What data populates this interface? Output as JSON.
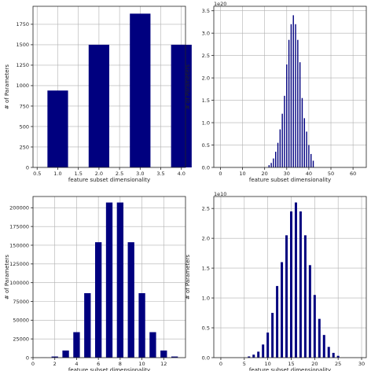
{
  "chart_data": [
    {
      "type": "bar",
      "xlabel": "feature subset dimensionality",
      "ylabel": "# of Parameters",
      "xlim": [
        0.4,
        4.1
      ],
      "ylim": [
        0,
        1970
      ],
      "xticks": [
        0.5,
        1.0,
        1.5,
        2.0,
        2.5,
        3.0,
        3.5,
        4.0
      ],
      "xtick_labels": [
        "0.5",
        "1.0",
        "1.5",
        "2.0",
        "2.5",
        "3.0",
        "3.5",
        "4.0"
      ],
      "yticks": [
        0,
        250,
        500,
        750,
        1000,
        1250,
        1500,
        1750
      ],
      "ytick_labels": [
        "0",
        "250",
        "500",
        "750",
        "1000",
        "1250",
        "1500",
        "1750"
      ],
      "offset_text": "",
      "grid": true,
      "bar_width": 0.5,
      "x": [
        1,
        2,
        3,
        4
      ],
      "values": [
        940,
        1500,
        1880,
        1500
      ],
      "color": "#00007f"
    },
    {
      "type": "bar",
      "xlabel": "feature subset dimensionality",
      "ylabel": "# of Parameters",
      "xlim": [
        -3,
        66
      ],
      "ylim": [
        0,
        3.6
      ],
      "xticks": [
        0,
        10,
        20,
        30,
        40,
        50,
        60
      ],
      "xtick_labels": [
        "0",
        "10",
        "20",
        "30",
        "40",
        "50",
        "60"
      ],
      "yticks": [
        0,
        0.5,
        1.0,
        1.5,
        2.0,
        2.5,
        3.0,
        3.5
      ],
      "ytick_labels": [
        "0.0",
        "0.5",
        "1.0",
        "1.5",
        "2.0",
        "2.5",
        "3.0",
        "3.5"
      ],
      "offset_text": "1e20",
      "grid": true,
      "bar_width": 0.5,
      "x": [
        22,
        23,
        24,
        25,
        26,
        27,
        28,
        29,
        30,
        31,
        32,
        33,
        34,
        35,
        36,
        37,
        38,
        39,
        40,
        41,
        42
      ],
      "values": [
        0.05,
        0.1,
        0.2,
        0.35,
        0.55,
        0.85,
        1.2,
        1.6,
        2.3,
        2.85,
        3.2,
        3.4,
        3.2,
        2.85,
        2.35,
        1.55,
        1.1,
        0.8,
        0.5,
        0.3,
        0.15
      ],
      "color": "#00007f"
    },
    {
      "type": "bar",
      "xlabel": "feature subset dimensionality",
      "ylabel": "# of Parameters",
      "xlim": [
        0,
        14
      ],
      "ylim": [
        0,
        215000
      ],
      "xticks": [
        0,
        2,
        4,
        6,
        8,
        10,
        12
      ],
      "xtick_labels": [
        "0",
        "2",
        "4",
        "6",
        "8",
        "10",
        "12"
      ],
      "yticks": [
        0,
        25000,
        50000,
        75000,
        100000,
        125000,
        150000,
        175000,
        200000
      ],
      "ytick_labels": [
        "0",
        "25000",
        "50000",
        "75000",
        "100000",
        "125000",
        "150000",
        "175000",
        "200000"
      ],
      "offset_text": "",
      "grid": true,
      "bar_width": 0.6,
      "x": [
        1,
        2,
        3,
        4,
        5,
        6,
        7,
        8,
        9,
        10,
        11,
        12,
        13
      ],
      "values": [
        100,
        1500,
        9500,
        34000,
        86000,
        154000,
        207000,
        207000,
        154000,
        86000,
        34000,
        9500,
        1500
      ],
      "color": "#00007f"
    },
    {
      "type": "bar",
      "xlabel": "feature subset dimensionality",
      "ylabel": "# of Parameters",
      "xlim": [
        -1.5,
        31
      ],
      "ylim": [
        0,
        2.7
      ],
      "xticks": [
        0,
        5,
        10,
        15,
        20,
        25,
        30
      ],
      "xtick_labels": [
        "0",
        "5",
        "10",
        "15",
        "20",
        "25",
        "30"
      ],
      "yticks": [
        0,
        0.5,
        1.0,
        1.5,
        2.0,
        2.5
      ],
      "ytick_labels": [
        "0.0",
        "0.5",
        "1.0",
        "1.5",
        "2.0",
        "2.5"
      ],
      "offset_text": "1e10",
      "grid": true,
      "bar_width": 0.5,
      "x": [
        6,
        7,
        8,
        9,
        10,
        11,
        12,
        13,
        14,
        15,
        16,
        17,
        18,
        19,
        20,
        21,
        22,
        23,
        24,
        25
      ],
      "values": [
        0.02,
        0.05,
        0.1,
        0.22,
        0.42,
        0.75,
        1.2,
        1.6,
        2.05,
        2.45,
        2.6,
        2.45,
        2.05,
        1.55,
        1.05,
        0.65,
        0.38,
        0.18,
        0.08,
        0.03
      ],
      "color": "#00007f"
    }
  ]
}
